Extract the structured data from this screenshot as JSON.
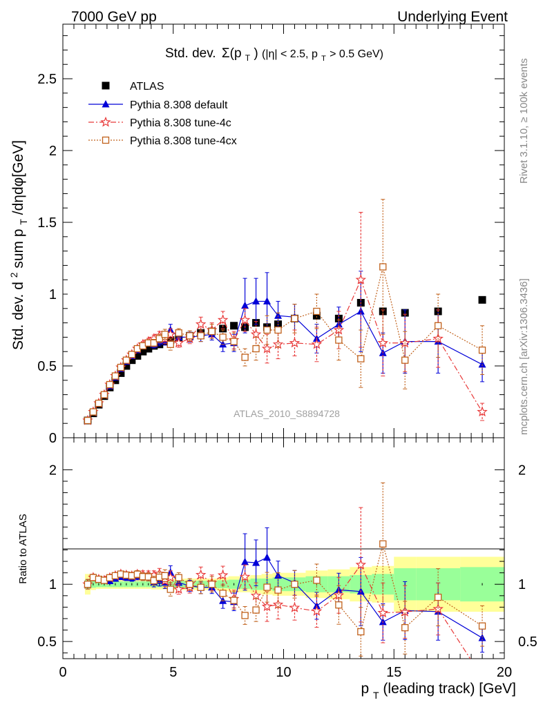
{
  "header": {
    "left": "7000 GeV pp",
    "right": "Underlying Event"
  },
  "side_labels": {
    "top": "Rivet 3.1.10, ≥ 100k events",
    "bottom": "mcplots.cern.ch [arXiv:1306.3436]"
  },
  "chart_data": {
    "type": "scatter",
    "title": "Std. dev. Σ(p_T) (|η| < 2.5, p_T > 0.5 GeV)",
    "title_main": "Std. dev.",
    "title_sigma": "Σ(p",
    "title_sigma_sub": "T",
    "title_sigma_close": ")",
    "title_cut_a": " (|η| < 2.5, p",
    "title_cut_sub": "T",
    "title_cut_b": " > 0.5 GeV)",
    "watermark": "ATLAS_2010_S8894728",
    "xlabel": "p_T (leading track) [GeV]",
    "xlabel_main": "p",
    "xlabel_sub": "T",
    "xlabel_rest": " (leading track) [GeV]",
    "ylabel": "Std. dev. d² sum p_T/dηdφ[GeV]",
    "ylabel_a": "Std. dev. d",
    "ylabel_sup": "2",
    "ylabel_b": " sum p",
    "ylabel_sub": "T",
    "ylabel_c": "/dηdφ[GeV]",
    "ratio_ylabel": "Ratio to ATLAS",
    "xlim": [
      0,
      20
    ],
    "ylim": [
      0,
      2.88
    ],
    "ratio_ylim": [
      0.35,
      2.28
    ],
    "x_ticks": [
      "0",
      "5",
      "10",
      "15",
      "20"
    ],
    "y_ticks": [
      "0",
      "0.5",
      "1",
      "1.5",
      "2",
      "2.5"
    ],
    "ratio_ticks": [
      "0.5",
      "1",
      "2"
    ],
    "legend_position": "top-left",
    "x": [
      1.125,
      1.375,
      1.625,
      1.875,
      2.125,
      2.375,
      2.625,
      2.875,
      3.125,
      3.375,
      3.625,
      3.875,
      4.125,
      4.375,
      4.625,
      4.875,
      5.25,
      5.75,
      6.25,
      6.75,
      7.25,
      7.75,
      8.25,
      8.75,
      9.25,
      9.75,
      10.5,
      11.5,
      12.5,
      13.5,
      14.5,
      15.5,
      17.0,
      19.0
    ],
    "series": [
      {
        "name": "ATLAS",
        "color": "#000000",
        "marker": "filled-square",
        "values": [
          0.12,
          0.17,
          0.23,
          0.29,
          0.35,
          0.4,
          0.45,
          0.5,
          0.54,
          0.57,
          0.6,
          0.62,
          0.64,
          0.65,
          0.67,
          0.68,
          0.69,
          0.71,
          0.73,
          0.74,
          0.76,
          0.78,
          0.77,
          0.8,
          0.77,
          0.79,
          0.83,
          0.85,
          0.83,
          0.94,
          0.88,
          0.87,
          0.88,
          0.96
        ],
        "errors": [
          0.005,
          0.005,
          0.005,
          0.005,
          0.005,
          0.005,
          0.005,
          0.005,
          0.005,
          0.005,
          0.005,
          0.005,
          0.006,
          0.006,
          0.007,
          0.008,
          0.01,
          0.01,
          0.01,
          0.01,
          0.01,
          0.01,
          0.01,
          0.01,
          0.01,
          0.01,
          0.01,
          0.01,
          0.01,
          0.01,
          0.01,
          0.01,
          0.01,
          0.01
        ]
      },
      {
        "name": "Pythia 8.308 default",
        "color": "#0000d8",
        "marker": "filled-triangle",
        "line": "solid",
        "values": [
          0.12,
          0.18,
          0.24,
          0.3,
          0.36,
          0.42,
          0.48,
          0.53,
          0.57,
          0.61,
          0.64,
          0.66,
          0.65,
          0.67,
          0.68,
          0.75,
          0.7,
          0.7,
          0.71,
          0.72,
          0.65,
          0.66,
          0.92,
          0.95,
          0.95,
          0.85,
          0.84,
          0.69,
          0.79,
          0.88,
          0.59,
          0.67,
          0.67,
          0.51
        ],
        "errors": [
          0.005,
          0.005,
          0.006,
          0.007,
          0.008,
          0.01,
          0.012,
          0.014,
          0.016,
          0.018,
          0.02,
          0.022,
          0.025,
          0.03,
          0.035,
          0.04,
          0.03,
          0.035,
          0.04,
          0.04,
          0.05,
          0.06,
          0.19,
          0.16,
          0.2,
          0.1,
          0.09,
          0.1,
          0.12,
          0.28,
          0.14,
          0.22,
          0.22,
          0.12
        ]
      },
      {
        "name": "Pythia 8.308 tune-4c",
        "color": "#e83838",
        "marker": "open-star",
        "line": "dash-dot",
        "values": [
          0.12,
          0.18,
          0.24,
          0.3,
          0.37,
          0.43,
          0.49,
          0.54,
          0.58,
          0.62,
          0.65,
          0.67,
          0.69,
          0.71,
          0.69,
          0.72,
          0.66,
          0.69,
          0.79,
          0.75,
          0.82,
          0.68,
          0.82,
          0.72,
          0.62,
          0.65,
          0.66,
          0.65,
          0.75,
          1.1,
          0.66,
          0.66,
          0.69,
          0.18
        ],
        "errors": [
          0.005,
          0.005,
          0.006,
          0.007,
          0.008,
          0.01,
          0.012,
          0.014,
          0.016,
          0.018,
          0.02,
          0.022,
          0.025,
          0.03,
          0.035,
          0.04,
          0.03,
          0.035,
          0.05,
          0.05,
          0.06,
          0.06,
          0.08,
          0.09,
          0.1,
          0.1,
          0.09,
          0.12,
          0.13,
          0.47,
          0.23,
          0.2,
          0.2,
          0.06
        ]
      },
      {
        "name": "Pythia 8.308 tune-4cx",
        "color": "#c0601a",
        "marker": "open-square",
        "line": "dotted",
        "values": [
          0.12,
          0.18,
          0.24,
          0.3,
          0.37,
          0.43,
          0.49,
          0.54,
          0.58,
          0.62,
          0.64,
          0.66,
          0.66,
          0.69,
          0.72,
          0.65,
          0.73,
          0.71,
          0.71,
          0.74,
          0.7,
          0.67,
          0.56,
          0.62,
          0.75,
          0.75,
          0.83,
          0.88,
          0.68,
          0.55,
          1.19,
          0.54,
          0.78,
          0.61
        ],
        "errors": [
          0.005,
          0.005,
          0.006,
          0.007,
          0.008,
          0.01,
          0.012,
          0.014,
          0.016,
          0.018,
          0.02,
          0.022,
          0.025,
          0.03,
          0.035,
          0.04,
          0.03,
          0.035,
          0.04,
          0.05,
          0.05,
          0.06,
          0.06,
          0.08,
          0.1,
          0.12,
          0.1,
          0.12,
          0.14,
          0.2,
          0.47,
          0.2,
          0.22,
          0.17
        ]
      }
    ],
    "ratio_band": {
      "x_edges": [
        1.0,
        1.25,
        1.5,
        1.75,
        2.0,
        2.25,
        2.5,
        2.75,
        3.0,
        3.25,
        3.5,
        3.75,
        4.0,
        4.25,
        4.5,
        4.75,
        5.0,
        5.5,
        6.0,
        6.5,
        7.0,
        7.5,
        8.0,
        8.5,
        9.0,
        9.5,
        10.0,
        11.0,
        12.0,
        13.0,
        14.0,
        15.0,
        16.0,
        18.0,
        20.0
      ],
      "stat_half": [
        0.04,
        0.03,
        0.025,
        0.025,
        0.025,
        0.025,
        0.025,
        0.025,
        0.025,
        0.025,
        0.025,
        0.025,
        0.025,
        0.025,
        0.025,
        0.025,
        0.03,
        0.03,
        0.03,
        0.03,
        0.035,
        0.04,
        0.04,
        0.05,
        0.05,
        0.06,
        0.06,
        0.07,
        0.07,
        0.08,
        0.09,
        0.14,
        0.14,
        0.15
      ],
      "total_half": [
        0.09,
        0.05,
        0.04,
        0.04,
        0.04,
        0.04,
        0.04,
        0.04,
        0.04,
        0.04,
        0.04,
        0.04,
        0.045,
        0.045,
        0.045,
        0.045,
        0.05,
        0.05,
        0.05,
        0.05,
        0.06,
        0.07,
        0.07,
        0.08,
        0.09,
        0.1,
        0.1,
        0.12,
        0.13,
        0.15,
        0.16,
        0.24,
        0.24,
        0.24
      ]
    }
  }
}
